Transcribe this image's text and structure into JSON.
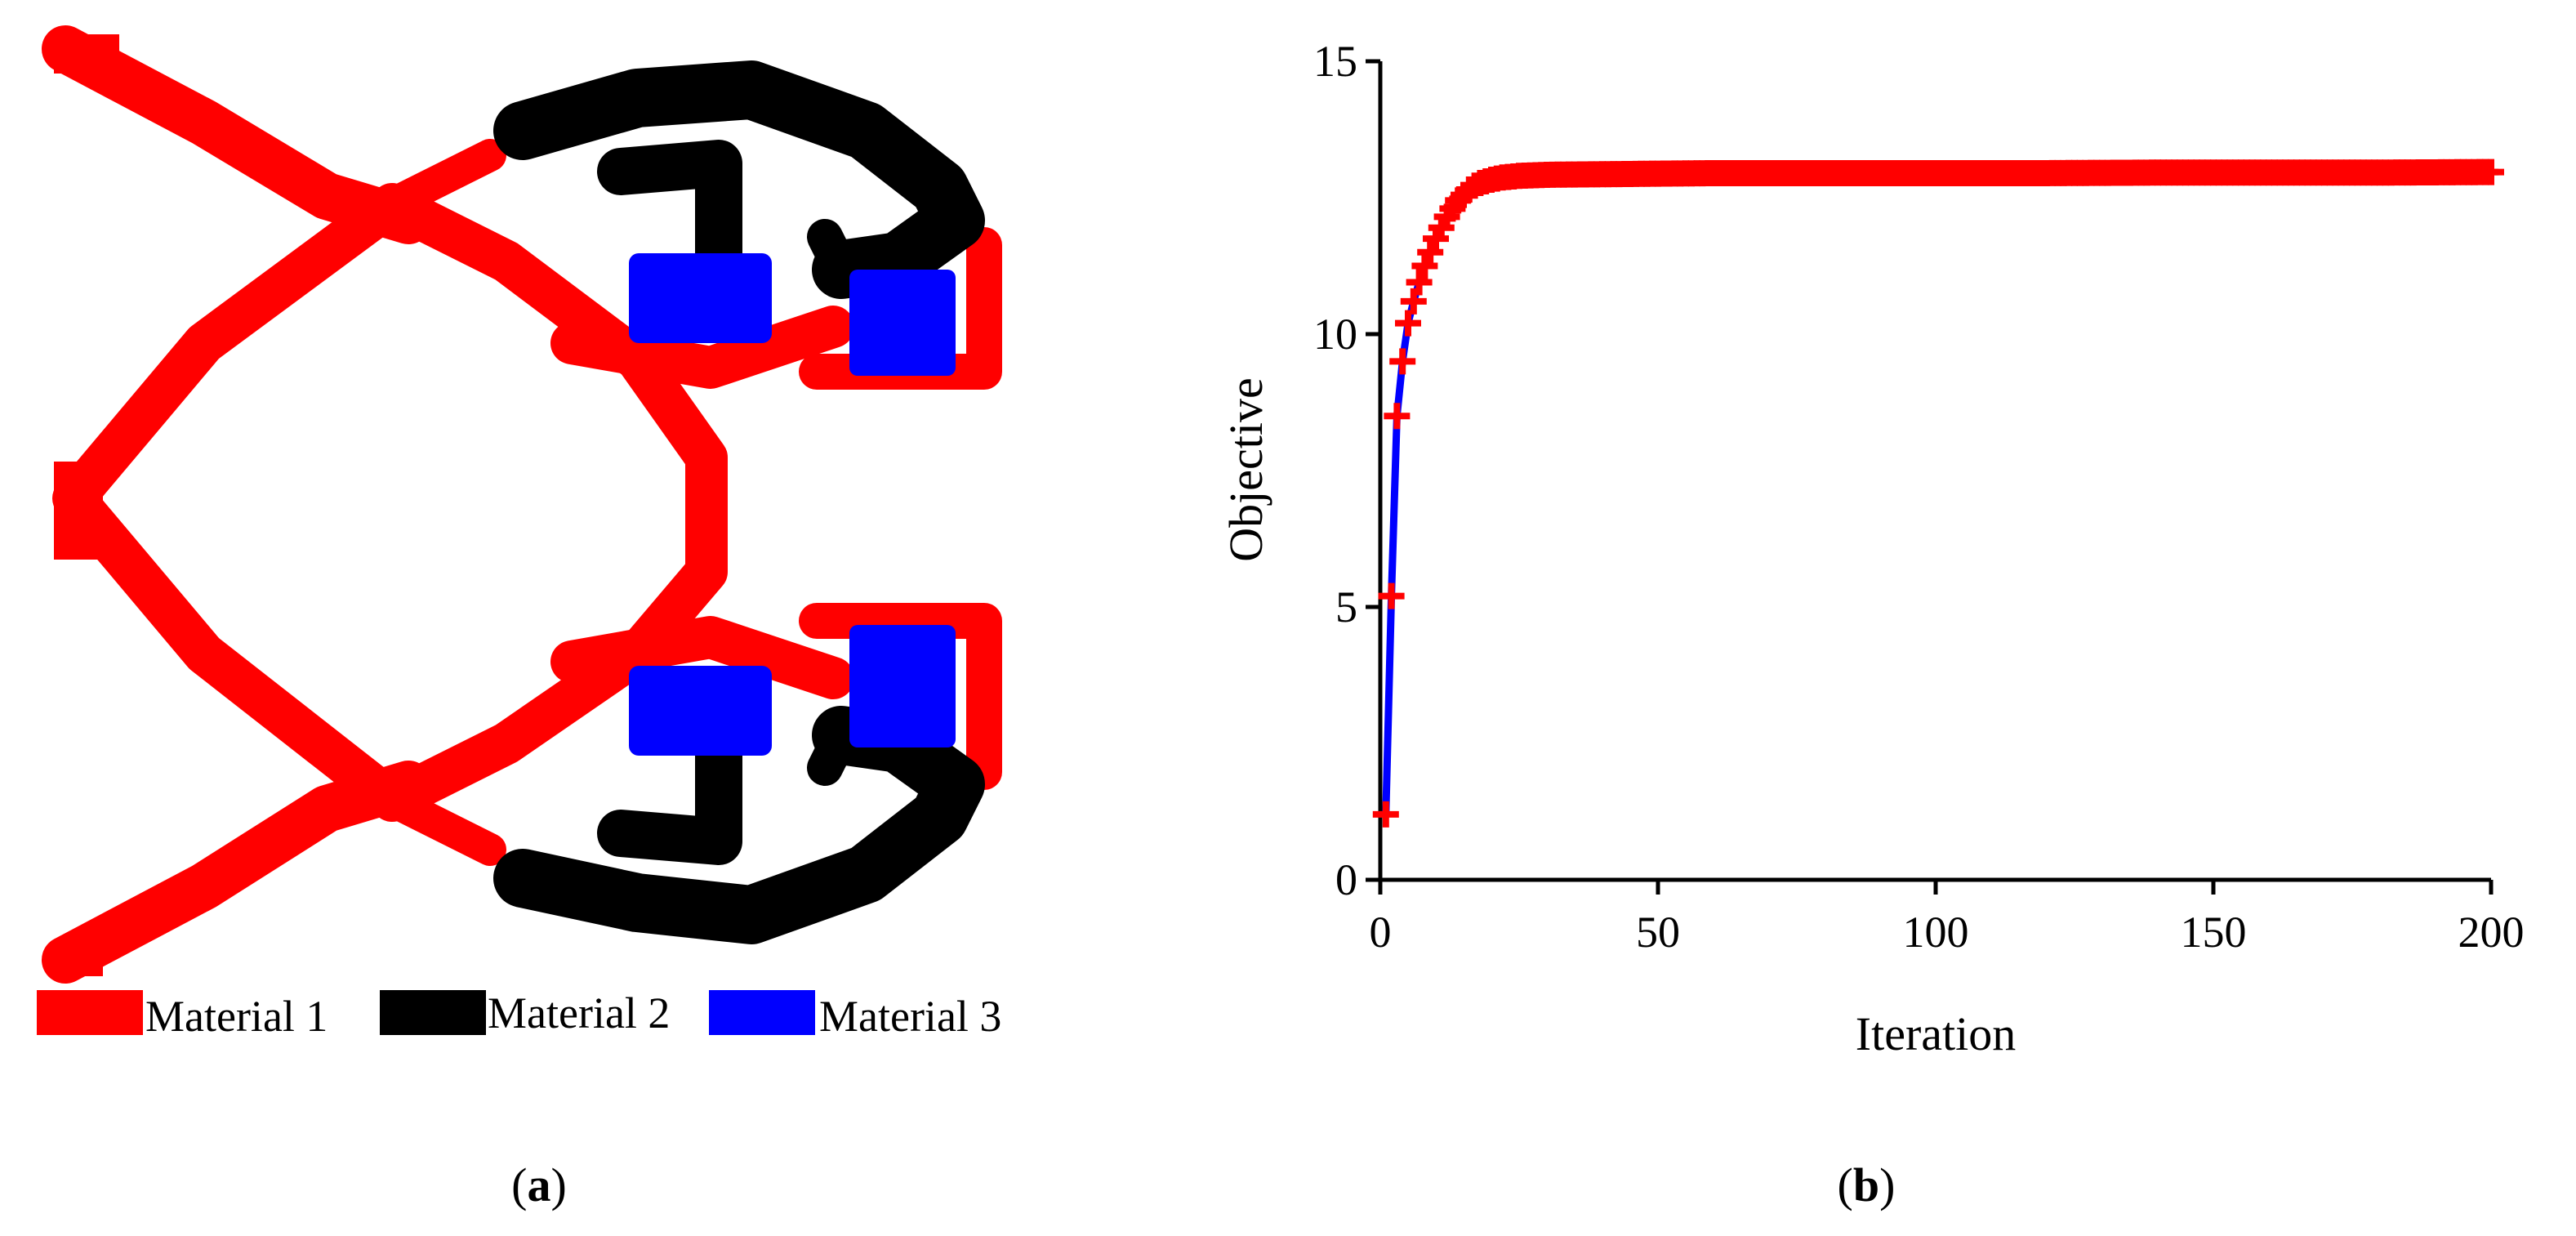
{
  "panels": [
    {
      "label": "(",
      "bold": "a",
      "close": ")"
    },
    {
      "label": "(",
      "bold": "b",
      "close": ")"
    }
  ],
  "legend": [
    {
      "name": "Material 1",
      "color": "#ff0000"
    },
    {
      "name": "Material 2",
      "color": "#000000"
    },
    {
      "name": "Material 3",
      "color": "#0000ff"
    }
  ],
  "colors": {
    "material1": "#ff0000",
    "material2": "#000000",
    "material3": "#0000ff",
    "line": "#0000ff",
    "marker": "#ff0000"
  },
  "chart_data": {
    "type": "line",
    "title": "",
    "xlabel": "Iteration",
    "ylabel": "Objective",
    "xlim": [
      0,
      200
    ],
    "ylim": [
      0,
      15
    ],
    "xticks": [
      0,
      50,
      100,
      150,
      200
    ],
    "yticks": [
      0,
      5,
      10,
      15
    ],
    "grid": false,
    "marker": "plus",
    "series": [
      {
        "values_key": "curve",
        "x": [
          1,
          2,
          3,
          4,
          5,
          6,
          7,
          8,
          9,
          10,
          11,
          12,
          13,
          14,
          15,
          16,
          17,
          18,
          19,
          20,
          22,
          25,
          30,
          40,
          50,
          60,
          80,
          100,
          120,
          140,
          160,
          180,
          200
        ],
        "y": [
          1.2,
          5.2,
          8.5,
          9.5,
          10.2,
          10.6,
          10.95,
          11.25,
          11.5,
          11.75,
          11.95,
          12.15,
          12.3,
          12.45,
          12.55,
          12.65,
          12.72,
          12.77,
          12.8,
          12.83,
          12.87,
          12.9,
          12.92,
          12.93,
          12.94,
          12.95,
          12.95,
          12.95,
          12.95,
          12.96,
          12.96,
          12.96,
          12.97
        ]
      }
    ]
  }
}
